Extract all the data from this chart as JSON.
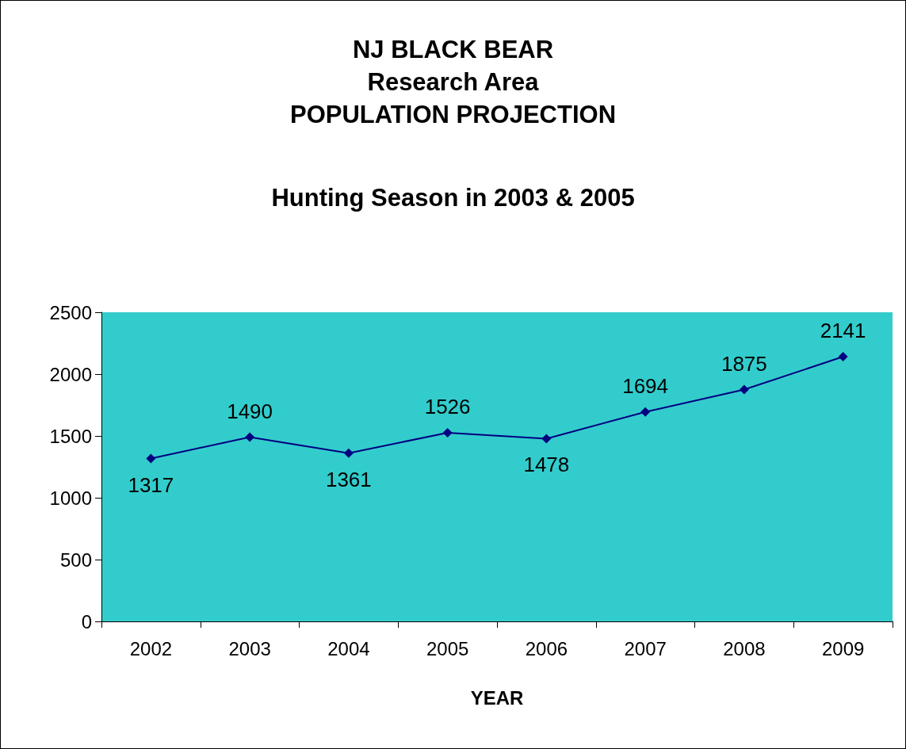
{
  "chart_data": {
    "type": "line",
    "title": "NJ BLACK BEAR\nResearch Area\nPOPULATION PROJECTION",
    "subtitle": "Hunting Season in 2003 & 2005",
    "xlabel": "YEAR",
    "categories": [
      "2002",
      "2003",
      "2004",
      "2005",
      "2006",
      "2007",
      "2008",
      "2009"
    ],
    "series": [
      {
        "color": "#000080",
        "values": [
          1317,
          1490,
          1361,
          1526,
          1478,
          1694,
          1875,
          2141
        ]
      }
    ],
    "ylim": [
      0,
      2500
    ],
    "yticks": [
      0,
      500,
      1000,
      1500,
      2000,
      2500
    ],
    "grid": false,
    "marker": "diamond",
    "line_style": "solid",
    "data_labels": true
  }
}
